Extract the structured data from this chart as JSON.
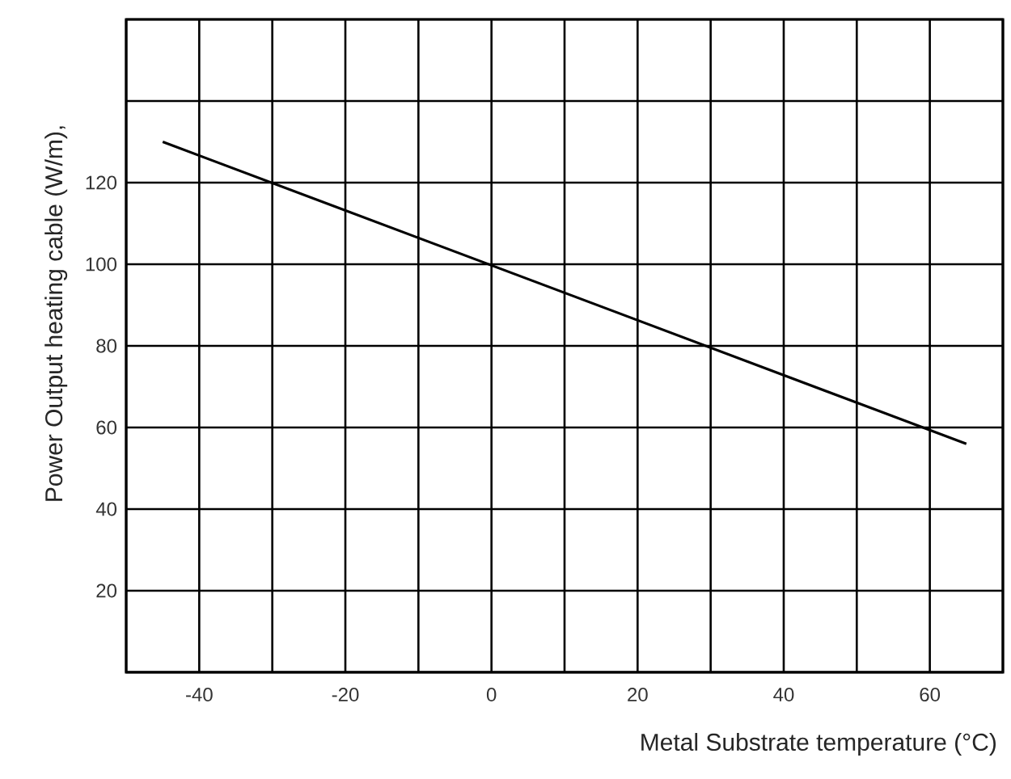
{
  "chart_data": {
    "type": "line",
    "xlabel": "Metal Substrate temperature (°C)",
    "ylabel": "Power Output heating cable (W/m),",
    "x": [
      -45,
      65
    ],
    "series": [
      {
        "color": "#000000",
        "values": [
          130,
          56
        ]
      }
    ],
    "xlim": [
      -50,
      70
    ],
    "xticks": [
      {
        "value": -50,
        "label": null
      },
      -40,
      {
        "value": -30,
        "label": null
      },
      -20,
      {
        "value": -10,
        "label": null
      },
      0,
      {
        "value": 10,
        "label": null
      },
      20,
      {
        "value": 30,
        "label": null
      },
      40,
      {
        "value": 50,
        "label": null
      },
      60,
      {
        "value": 70,
        "label": null
      }
    ],
    "ylim": [
      0,
      160
    ],
    "yticks": [
      {
        "value": 0,
        "label": null
      },
      20,
      40,
      60,
      80,
      100,
      120,
      {
        "value": 140,
        "label": null
      },
      {
        "value": 160,
        "label": null
      }
    ],
    "grid": true,
    "marker": "none",
    "line_style": "solid"
  }
}
